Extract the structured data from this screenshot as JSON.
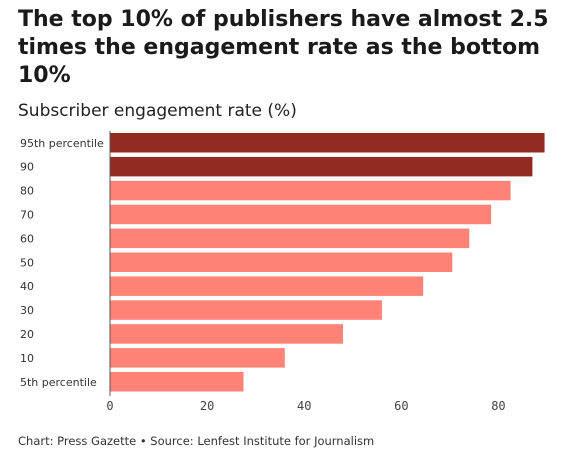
{
  "title": "The top 10% of publishers have almost 2.5 times the engagement rate as the bottom 10%",
  "subtitle": "Subscriber engagement rate (%)",
  "footer": "Chart: Press Gazette • Source: Lenfest Institute for Journalism",
  "colors": {
    "highlight": "#922B21",
    "base": "#FF8276"
  },
  "chart_data": {
    "type": "bar",
    "orientation": "horizontal",
    "title": "The top 10% of publishers have almost 2.5 times the engagement rate as the bottom 10%",
    "subtitle": "Subscriber engagement rate (%)",
    "categories": [
      "95th percentile",
      "90",
      "80",
      "70",
      "60",
      "50",
      "40",
      "30",
      "20",
      "10",
      "5th percentile"
    ],
    "values": [
      89.5,
      87,
      82.5,
      78.5,
      74,
      70.5,
      64.5,
      56,
      48,
      36,
      27.5
    ],
    "highlighted": [
      true,
      true,
      false,
      false,
      false,
      false,
      false,
      false,
      false,
      false,
      false
    ],
    "xlim": [
      0,
      90
    ],
    "xticks": [
      0,
      20,
      40,
      60,
      80
    ],
    "grid": false
  }
}
